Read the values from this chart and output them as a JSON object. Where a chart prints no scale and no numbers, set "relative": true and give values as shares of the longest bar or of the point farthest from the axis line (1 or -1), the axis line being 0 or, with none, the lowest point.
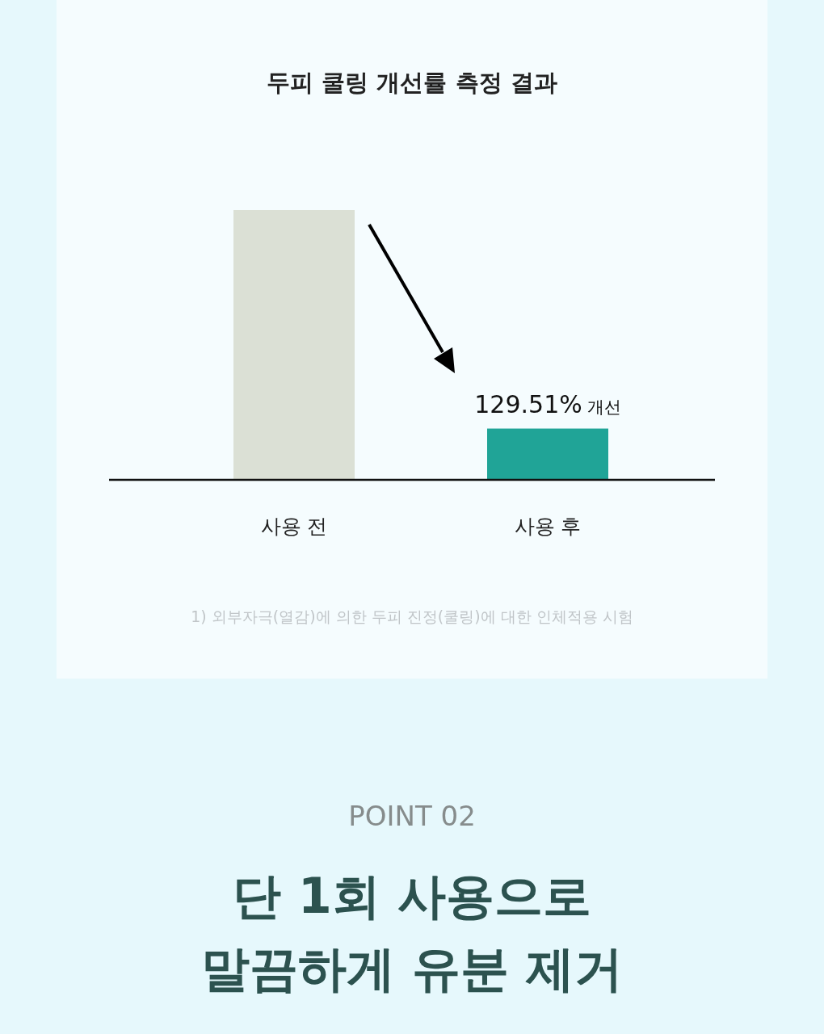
{
  "chart_data": {
    "type": "bar",
    "title": "두피 쿨링 개선률 측정 결과",
    "categories": [
      "사용 전",
      "사용 후"
    ],
    "values": [
      1,
      0.19
    ],
    "colors": [
      "#dbe0d5",
      "#20a497"
    ],
    "relative": true,
    "annotations": [
      {
        "text": "129.51% 개선",
        "x": "사용 후",
        "y": 0.19
      },
      "1) 외부자극(열감)에 의한 두피 진정(쿨링)에 대한 인체적용 시험",
      "POINT 02",
      "단 1회 사용으로 말끔하게 유분 제거"
    ]
  }
}
